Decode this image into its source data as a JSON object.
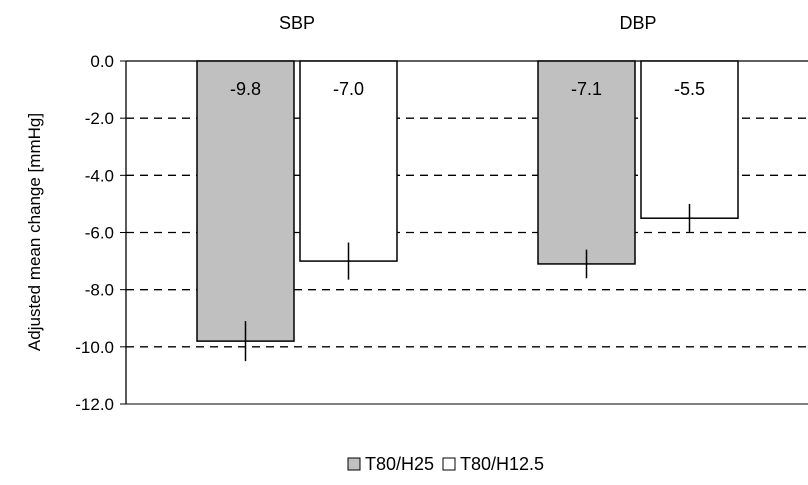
{
  "chart_data": {
    "type": "bar",
    "categories": [
      "SBP",
      "DBP"
    ],
    "series": [
      {
        "name": "T80/H25",
        "values": [
          -9.8,
          -7.1
        ],
        "error": [
          0.7,
          0.5
        ],
        "color": "#c0c0c0",
        "edge": "#000000"
      },
      {
        "name": "T80/H12.5",
        "values": [
          -7.0,
          -5.5
        ],
        "error": [
          0.65,
          0.5
        ],
        "color": "#ffffff",
        "edge": "#000000"
      }
    ],
    "value_labels": [
      [
        "-9.8",
        "-7.1"
      ],
      [
        "-7.0",
        "-5.5"
      ]
    ],
    "title": "",
    "xlabel": "",
    "ylabel": "Adjusted mean change [mmHg]",
    "ylim": [
      -12.0,
      0.0
    ],
    "yticks": [
      0.0,
      -2.0,
      -4.0,
      -6.0,
      -8.0,
      -10.0,
      -12.0
    ],
    "ytick_labels": [
      "0.0",
      "-2.0",
      "-4.0",
      "-6.0",
      "-8.0",
      "-10.0",
      "-12.0"
    ],
    "grid": "dashed-horizontal",
    "legend_position": "bottom"
  }
}
